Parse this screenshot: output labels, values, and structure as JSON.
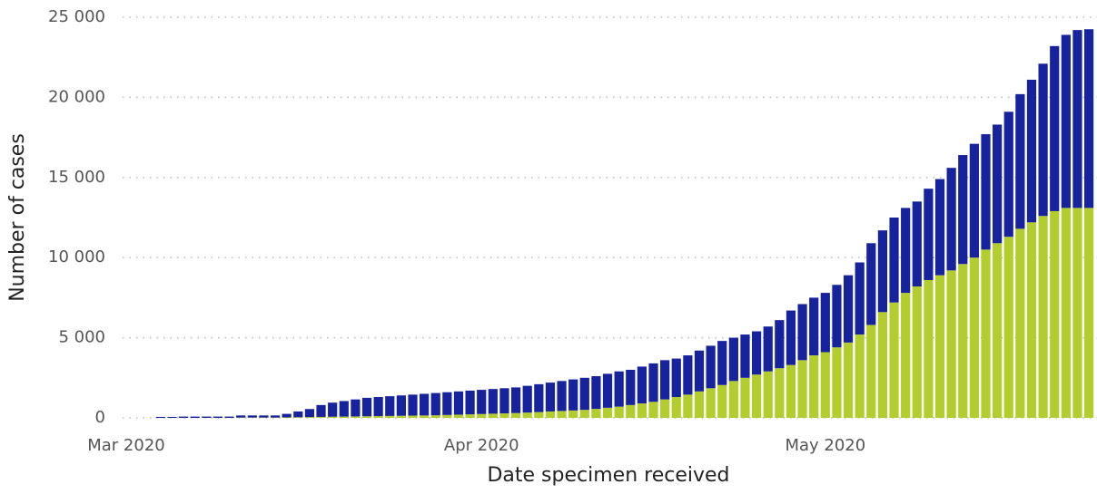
{
  "chart_data": {
    "type": "stacked_bar",
    "x_label": "Date specimen received",
    "y_label": "Number of cases",
    "categories": [
      "Mar 2020",
      null,
      null,
      null,
      null,
      null,
      null,
      null,
      null,
      null,
      null,
      null,
      null,
      null,
      null,
      null,
      null,
      null,
      null,
      null,
      null,
      null,
      null,
      null,
      null,
      null,
      null,
      null,
      null,
      null,
      null,
      "Apr 2020",
      null,
      null,
      null,
      null,
      null,
      null,
      null,
      null,
      null,
      null,
      null,
      null,
      null,
      null,
      null,
      null,
      null,
      null,
      null,
      null,
      null,
      null,
      null,
      null,
      null,
      null,
      null,
      null,
      null,
      "May 2020",
      null,
      null,
      null,
      null,
      null,
      null,
      null,
      null,
      null,
      null,
      null,
      null,
      null,
      null,
      null,
      null,
      null,
      null,
      null,
      null,
      null,
      null,
      null
    ],
    "series": [
      {
        "color": "#b3cc2e",
        "values": [
          0,
          0,
          0,
          0,
          0,
          0,
          0,
          0,
          0,
          0,
          20,
          20,
          20,
          20,
          30,
          40,
          50,
          60,
          70,
          80,
          90,
          100,
          110,
          120,
          130,
          140,
          150,
          160,
          180,
          200,
          220,
          240,
          260,
          280,
          300,
          330,
          360,
          400,
          430,
          460,
          500,
          560,
          630,
          700,
          800,
          900,
          1000,
          1150,
          1300,
          1450,
          1650,
          1850,
          2050,
          2300,
          2500,
          2700,
          2900,
          3100,
          3300,
          3600,
          3900,
          4100,
          4400,
          4700,
          5200,
          5800,
          6600,
          7200,
          7800,
          8200,
          8600,
          8900,
          9200,
          9600,
          10000,
          10500,
          10900,
          11300,
          11800,
          12200,
          12600,
          12900,
          13100,
          13100,
          13100
        ]
      },
      {
        "color": "#17239c",
        "values": [
          0,
          0,
          0,
          60,
          60,
          80,
          80,
          80,
          80,
          80,
          130,
          130,
          130,
          130,
          220,
          360,
          500,
          740,
          880,
          970,
          1060,
          1150,
          1190,
          1230,
          1270,
          1310,
          1350,
          1390,
          1420,
          1450,
          1480,
          1510,
          1540,
          1570,
          1600,
          1670,
          1740,
          1800,
          1870,
          1940,
          2000,
          2040,
          2120,
          2200,
          2200,
          2300,
          2400,
          2450,
          2400,
          2450,
          2550,
          2650,
          2750,
          2700,
          2700,
          2700,
          2800,
          3000,
          3400,
          3500,
          3600,
          3700,
          3900,
          4200,
          4500,
          5100,
          5100,
          5300,
          5300,
          5300,
          5700,
          6000,
          6400,
          6800,
          7100,
          7200,
          7400,
          7800,
          8400,
          8900,
          9500,
          10300,
          10800,
          11100,
          11150
        ]
      }
    ],
    "ylim": [
      0,
      25000
    ],
    "yticks": [
      0,
      {
        "value": 5000,
        "label": "5 000"
      },
      {
        "value": 10000,
        "label": "10 000"
      },
      {
        "value": 15000,
        "label": "15 000"
      },
      {
        "value": 20000,
        "label": "20 000"
      },
      {
        "value": 25000,
        "label": "25 000"
      }
    ],
    "grid": true
  }
}
